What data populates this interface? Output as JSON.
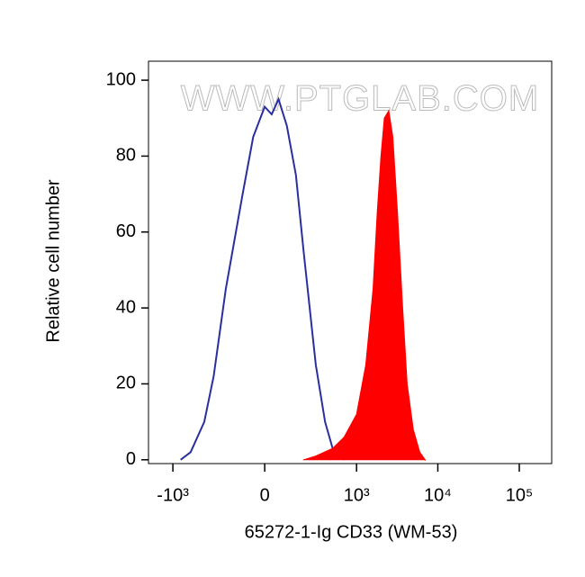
{
  "chart_data": {
    "type": "histogram-overlay",
    "xlabel": "65272-1-Ig CD33 (WM-53)",
    "ylabel": "Relative cell number",
    "watermark": "WWW.PTGLAB.COM",
    "xscale": "biexponential",
    "xlim": [
      -2000,
      250000
    ],
    "xticks": [
      {
        "value": -1000,
        "label": "-10³"
      },
      0,
      {
        "value": 1000,
        "label": "10³"
      },
      {
        "value": 10000,
        "label": "10⁴"
      },
      {
        "value": 100000,
        "label": "10⁵"
      }
    ],
    "ylim": [
      -1,
      105
    ],
    "yticks": [
      0,
      20,
      40,
      60,
      80,
      100
    ],
    "series": [
      {
        "color": "#2b2f9e",
        "fill": false,
        "x": [
          -800,
          -600,
          -400,
          -300,
          -200,
          -100,
          -50,
          0,
          30,
          60,
          100,
          150,
          200,
          300,
          400,
          500,
          700
        ],
        "values": [
          0,
          2,
          10,
          22,
          45,
          70,
          85,
          93,
          91,
          95,
          88,
          75,
          55,
          25,
          10,
          3,
          0
        ]
      },
      {
        "color": "#ff0000",
        "fill": true,
        "x": [
          200,
          300,
          500,
          700,
          1000,
          1300,
          1600,
          1800,
          2000,
          2200,
          2500,
          2800,
          3200,
          3700,
          4200,
          5000,
          6000,
          7000
        ],
        "values": [
          0,
          1,
          3,
          6,
          12,
          25,
          45,
          65,
          80,
          90,
          92,
          85,
          65,
          40,
          20,
          8,
          2,
          0
        ]
      }
    ]
  }
}
